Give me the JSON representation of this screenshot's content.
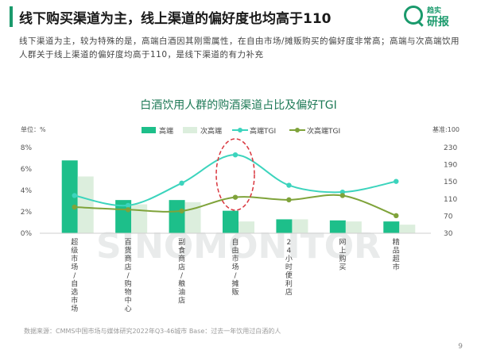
{
  "header": {
    "title": "线下购买渠道为主，线上渠道的偏好度也均高于110",
    "subtitle": "线下渠道为主，较为特殊的是，高端白酒因其刚需属性，在自由市场/摊贩购买的偏好度非常高；高端与次高端饮用人群关于线上渠道的偏好度均高于110，是线下渠道的有力补充"
  },
  "logo": {
    "line1": "趋实",
    "line2": "研报",
    "icon": "magnifier-q-icon"
  },
  "watermark": "SINOMONITOR",
  "footer": {
    "source": "数据来源：CMMS中国市场与媒体研究2022年Q3-46城市 Base：过去一年饮用过白酒的人",
    "page": "9"
  },
  "colors": {
    "primary": "#1dbf8a",
    "secondary": "#dceedd",
    "tgi1": "#3cd4bd",
    "tgi2": "#7fa33a",
    "highlight": "#d9363e"
  },
  "chart_data": {
    "type": "bar",
    "title": "白酒饮用人群的购酒渠道占比及偏好TGI",
    "ylabel_left": "单位：%",
    "ylabel_right": "基准:100",
    "categories": [
      "超级市场/自选市场",
      "百货商店/购物中心",
      "副食商店/粮油店",
      "自由市场/摊贩",
      "24小时便利店",
      "网上购买",
      "精品超市"
    ],
    "y_ticks_left": [
      "0%",
      "2%",
      "4%",
      "6%",
      "8%"
    ],
    "y_ticks_right": [
      "30",
      "70",
      "110",
      "150",
      "190",
      "230"
    ],
    "ylim_left": [
      0,
      8
    ],
    "ylim_right": [
      30,
      230
    ],
    "legend": [
      "高端",
      "次高端",
      "高端TGI",
      "次高端TGI"
    ],
    "series": [
      {
        "name": "高端",
        "kind": "bar",
        "axis": "left",
        "values": [
          6.8,
          3.1,
          3.1,
          2.1,
          1.3,
          1.2,
          1.1
        ]
      },
      {
        "name": "次高端",
        "kind": "bar",
        "axis": "left",
        "values": [
          5.3,
          2.7,
          2.9,
          1.1,
          1.3,
          1.1,
          0.8
        ]
      },
      {
        "name": "高端TGI",
        "kind": "line",
        "axis": "right",
        "values": [
          118,
          95,
          147,
          213,
          142,
          126,
          151
        ]
      },
      {
        "name": "次高端TGI",
        "kind": "line",
        "axis": "right",
        "values": [
          91,
          85,
          82,
          114,
          108,
          118,
          71
        ]
      }
    ]
  }
}
